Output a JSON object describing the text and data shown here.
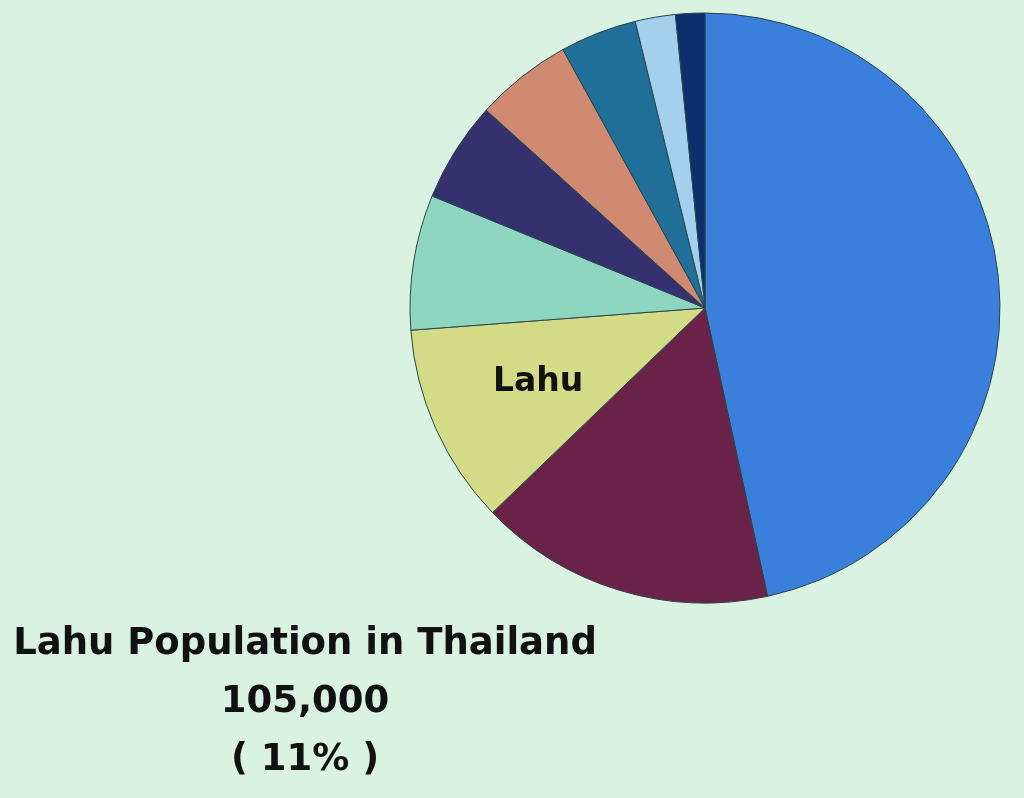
{
  "chart_data": {
    "type": "pie",
    "title": "Lahu Population in Thailand",
    "categories": [
      null,
      null,
      "Lahu",
      null,
      null,
      null,
      null,
      null,
      null
    ],
    "values": [
      46.6,
      16.2,
      11,
      7.4,
      5.5,
      5.3,
      4.2,
      2.2,
      1.6
    ],
    "colors": [
      "#3b7fdc",
      "#6a2248",
      "#d3db86",
      "#8ed6c0",
      "#35316e",
      "#d08a72",
      "#1f6f98",
      "#a4d0ee",
      "#0e2f6e"
    ],
    "annotations": [
      "105,000",
      "( 11% )"
    ]
  }
}
